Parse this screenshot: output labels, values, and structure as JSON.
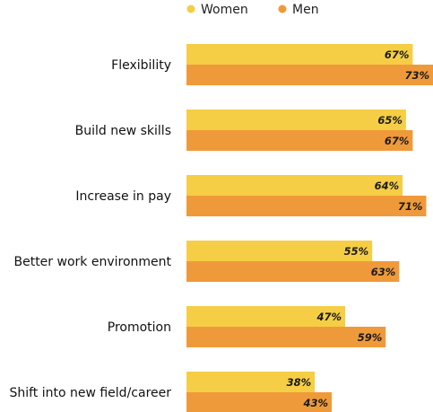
{
  "chart_data": {
    "type": "bar",
    "orientation": "horizontal",
    "categories": [
      "Flexibility",
      "Build new skills",
      "Increase in pay",
      "Better work environment",
      "Promotion",
      "Shift into new field/career"
    ],
    "series": [
      {
        "name": "Women",
        "color": "#F5CE45",
        "values": [
          67,
          65,
          64,
          55,
          47,
          38
        ],
        "labels": [
          "67%",
          "65%",
          "64%",
          "55%",
          "47%",
          "38%"
        ]
      },
      {
        "name": "Men",
        "color": "#EF9A3A",
        "values": [
          73,
          67,
          71,
          63,
          59,
          43
        ],
        "labels": [
          "73%",
          "67%",
          "71%",
          "63%",
          "59%",
          "43%"
        ]
      }
    ],
    "xlim": [
      0,
      73
    ],
    "legend_position": "top",
    "grid": false
  }
}
